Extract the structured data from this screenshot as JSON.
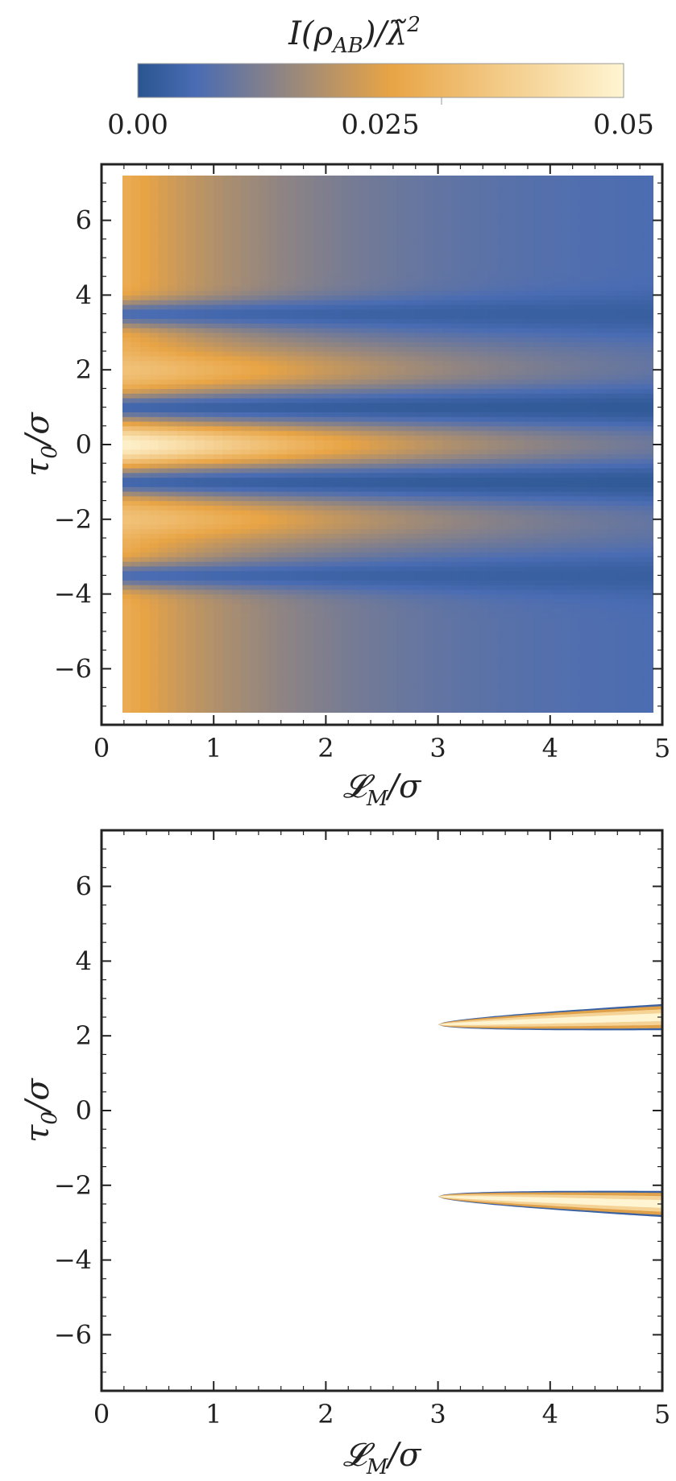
{
  "colorbar": {
    "title": "I(ρ_AB)/λ̃²",
    "title_main": "I(ρ",
    "title_sub": "AB",
    "title_tail": ")/λ̃",
    "title_sup": "2",
    "range": [
      0,
      0.05
    ],
    "ticks": [
      {
        "value": 0.0,
        "label": "0.00"
      },
      {
        "value": 0.025,
        "label": "0.025"
      },
      {
        "value": 0.05,
        "label": "0.05"
      }
    ],
    "colors": [
      "#2a5590",
      "#4a6cb3",
      "#e8a445",
      "#fff5d2"
    ]
  },
  "chart_data": [
    {
      "type": "heatmap",
      "xlabel": "L_M/σ",
      "ylabel": "τ_0/σ",
      "xlim": [
        0,
        5
      ],
      "ylim": [
        -7.5,
        7.5
      ],
      "data_x_range": [
        0.1,
        5.0
      ],
      "data_y_range": [
        -7.5,
        7.5
      ],
      "x_ticks": [
        {
          "value": 0,
          "label": "0"
        },
        {
          "value": 1,
          "label": "1"
        },
        {
          "value": 2,
          "label": "2"
        },
        {
          "value": 3,
          "label": "3"
        },
        {
          "value": 4,
          "label": "4"
        },
        {
          "value": 5,
          "label": "5"
        }
      ],
      "y_ticks": [
        {
          "value": 6,
          "label": "6"
        },
        {
          "value": 4,
          "label": "4"
        },
        {
          "value": 2,
          "label": "2"
        },
        {
          "value": 0,
          "label": "0"
        },
        {
          "value": -2,
          "label": "−2"
        },
        {
          "value": -4,
          "label": "−4"
        },
        {
          "value": -6,
          "label": "−6"
        }
      ],
      "bands": [
        {
          "tau": 0.0,
          "peak": 0.05
        },
        {
          "tau": 2.0,
          "peak": 0.035
        },
        {
          "tau": -2.0,
          "peak": 0.035
        }
      ],
      "dips": [
        {
          "tau": 1.0,
          "value": 0.0
        },
        {
          "tau": -1.0,
          "value": 0.0
        },
        {
          "tau": 3.5,
          "value": 0.002
        },
        {
          "tau": -3.5,
          "value": 0.002
        }
      ],
      "background_at_small_L": 0.03,
      "background_at_large_L": 0.005
    },
    {
      "type": "heatmap",
      "xlabel": "L_M/σ",
      "ylabel": "τ_0/σ",
      "xlim": [
        0,
        5
      ],
      "ylim": [
        -7.5,
        7.5
      ],
      "x_ticks": [
        {
          "value": 0,
          "label": "0"
        },
        {
          "value": 1,
          "label": "1"
        },
        {
          "value": 2,
          "label": "2"
        },
        {
          "value": 3,
          "label": "3"
        },
        {
          "value": 4,
          "label": "4"
        },
        {
          "value": 5,
          "label": "5"
        }
      ],
      "y_ticks": [
        {
          "value": 6,
          "label": "6"
        },
        {
          "value": 4,
          "label": "4"
        },
        {
          "value": 2,
          "label": "2"
        },
        {
          "value": 0,
          "label": "0"
        },
        {
          "value": -2,
          "label": "−2"
        },
        {
          "value": -4,
          "label": "−4"
        },
        {
          "value": -6,
          "label": "−6"
        }
      ],
      "regions": [
        {
          "name": "upper",
          "x_start": 3.0,
          "x_end": 5.0,
          "tau_center_start": 2.3,
          "tau_center_end": 2.5,
          "half_width_end": 0.35,
          "peak": 0.05
        },
        {
          "name": "lower",
          "x_start": 3.0,
          "x_end": 5.0,
          "tau_center_start": -2.3,
          "tau_center_end": -2.5,
          "half_width_end": 0.35,
          "peak": 0.05
        }
      ]
    }
  ]
}
